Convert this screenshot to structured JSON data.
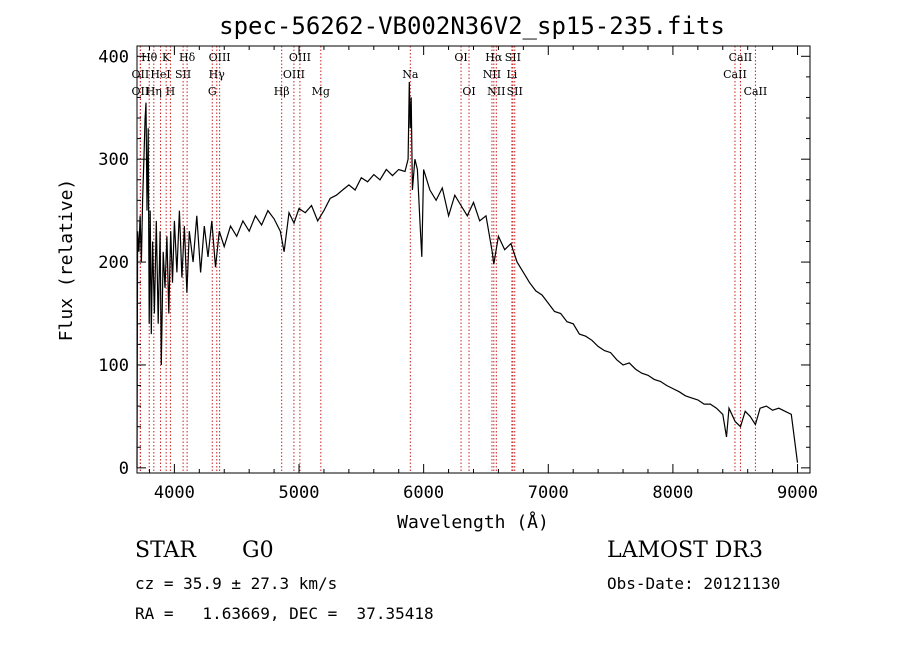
{
  "chart_data": {
    "type": "line",
    "title": "spec-56262-VB002N36V2_sp15-235.fits",
    "xlabel": "Wavelength (Å)",
    "ylabel": "Flux (relative)",
    "xlim": [
      3700,
      9100
    ],
    "ylim": [
      -5,
      410
    ],
    "x_ticks": [
      4000,
      5000,
      6000,
      7000,
      8000,
      9000
    ],
    "y_ticks": [
      0,
      100,
      200,
      300,
      400
    ],
    "series": [
      {
        "name": "flux",
        "points": [
          [
            3700,
            0
          ],
          [
            3705,
            230
          ],
          [
            3715,
            210
          ],
          [
            3725,
            245
          ],
          [
            3735,
            200
          ],
          [
            3745,
            260
          ],
          [
            3755,
            300
          ],
          [
            3765,
            340
          ],
          [
            3772,
            355
          ],
          [
            3780,
            250
          ],
          [
            3790,
            330
          ],
          [
            3798,
            140
          ],
          [
            3806,
            250
          ],
          [
            3815,
            130
          ],
          [
            3825,
            220
          ],
          [
            3840,
            150
          ],
          [
            3855,
            240
          ],
          [
            3870,
            140
          ],
          [
            3885,
            230
          ],
          [
            3895,
            100
          ],
          [
            3910,
            210
          ],
          [
            3925,
            175
          ],
          [
            3940,
            225
          ],
          [
            3955,
            150
          ],
          [
            3970,
            230
          ],
          [
            3985,
            180
          ],
          [
            4000,
            240
          ],
          [
            4020,
            190
          ],
          [
            4040,
            250
          ],
          [
            4060,
            185
          ],
          [
            4080,
            235
          ],
          [
            4100,
            170
          ],
          [
            4120,
            230
          ],
          [
            4150,
            200
          ],
          [
            4180,
            245
          ],
          [
            4210,
            190
          ],
          [
            4240,
            235
          ],
          [
            4270,
            205
          ],
          [
            4300,
            240
          ],
          [
            4330,
            195
          ],
          [
            4360,
            230
          ],
          [
            4400,
            215
          ],
          [
            4450,
            235
          ],
          [
            4500,
            225
          ],
          [
            4550,
            240
          ],
          [
            4600,
            230
          ],
          [
            4650,
            245
          ],
          [
            4700,
            236
          ],
          [
            4750,
            250
          ],
          [
            4800,
            242
          ],
          [
            4850,
            230
          ],
          [
            4880,
            210
          ],
          [
            4920,
            248
          ],
          [
            4960,
            238
          ],
          [
            5000,
            252
          ],
          [
            5050,
            248
          ],
          [
            5100,
            255
          ],
          [
            5150,
            240
          ],
          [
            5200,
            250
          ],
          [
            5250,
            262
          ],
          [
            5300,
            265
          ],
          [
            5350,
            270
          ],
          [
            5400,
            275
          ],
          [
            5450,
            270
          ],
          [
            5500,
            282
          ],
          [
            5550,
            278
          ],
          [
            5600,
            285
          ],
          [
            5650,
            280
          ],
          [
            5700,
            290
          ],
          [
            5750,
            284
          ],
          [
            5800,
            290
          ],
          [
            5850,
            288
          ],
          [
            5875,
            300
          ],
          [
            5885,
            375
          ],
          [
            5892,
            330
          ],
          [
            5900,
            360
          ],
          [
            5910,
            270
          ],
          [
            5930,
            300
          ],
          [
            5950,
            290
          ],
          [
            5970,
            240
          ],
          [
            5985,
            205
          ],
          [
            6000,
            290
          ],
          [
            6050,
            270
          ],
          [
            6100,
            260
          ],
          [
            6150,
            272
          ],
          [
            6200,
            245
          ],
          [
            6250,
            265
          ],
          [
            6300,
            255
          ],
          [
            6350,
            245
          ],
          [
            6400,
            258
          ],
          [
            6450,
            240
          ],
          [
            6500,
            245
          ],
          [
            6550,
            210
          ],
          [
            6563,
            198
          ],
          [
            6600,
            225
          ],
          [
            6650,
            212
          ],
          [
            6700,
            218
          ],
          [
            6750,
            200
          ],
          [
            6800,
            190
          ],
          [
            6850,
            180
          ],
          [
            6900,
            172
          ],
          [
            6950,
            168
          ],
          [
            7000,
            160
          ],
          [
            7050,
            152
          ],
          [
            7100,
            150
          ],
          [
            7150,
            142
          ],
          [
            7200,
            140
          ],
          [
            7250,
            130
          ],
          [
            7300,
            128
          ],
          [
            7350,
            124
          ],
          [
            7400,
            118
          ],
          [
            7450,
            114
          ],
          [
            7500,
            112
          ],
          [
            7550,
            105
          ],
          [
            7600,
            100
          ],
          [
            7650,
            102
          ],
          [
            7700,
            96
          ],
          [
            7750,
            92
          ],
          [
            7800,
            90
          ],
          [
            7850,
            86
          ],
          [
            7900,
            84
          ],
          [
            7950,
            80
          ],
          [
            8000,
            77
          ],
          [
            8050,
            74
          ],
          [
            8100,
            70
          ],
          [
            8150,
            68
          ],
          [
            8200,
            66
          ],
          [
            8250,
            62
          ],
          [
            8300,
            62
          ],
          [
            8350,
            58
          ],
          [
            8400,
            52
          ],
          [
            8430,
            30
          ],
          [
            8450,
            58
          ],
          [
            8500,
            45
          ],
          [
            8542,
            40
          ],
          [
            8580,
            55
          ],
          [
            8620,
            50
          ],
          [
            8662,
            42
          ],
          [
            8700,
            58
          ],
          [
            8750,
            60
          ],
          [
            8800,
            56
          ],
          [
            8850,
            58
          ],
          [
            8900,
            55
          ],
          [
            8950,
            52
          ],
          [
            9000,
            5
          ]
        ]
      }
    ],
    "spectral_lines": [
      {
        "label": "Hθ",
        "x": 3798,
        "row": 1
      },
      {
        "label": "OII",
        "x": 3727,
        "row": 2
      },
      {
        "label": "OII",
        "x": 3727,
        "row": 3
      },
      {
        "label": "Hη",
        "x": 3835,
        "row": 3
      },
      {
        "label": "K",
        "x": 3934,
        "row": 1
      },
      {
        "label": "HeI",
        "x": 3889,
        "row": 2
      },
      {
        "label": "SII",
        "x": 4070,
        "row": 2
      },
      {
        "label": "H",
        "x": 3968,
        "row": 3
      },
      {
        "label": "Hδ",
        "x": 4102,
        "row": 1
      },
      {
        "label": "OIII",
        "x": 4363,
        "row": 1
      },
      {
        "label": "Hγ",
        "x": 4340,
        "row": 2
      },
      {
        "label": "G",
        "x": 4304,
        "row": 3
      },
      {
        "label": "Hβ",
        "x": 4861,
        "row": 3
      },
      {
        "label": "OIII",
        "x": 5007,
        "row": 1
      },
      {
        "label": "OIII",
        "x": 4959,
        "row": 2
      },
      {
        "label": "Mg",
        "x": 5175,
        "row": 3
      },
      {
        "label": "Na",
        "x": 5893,
        "row": 2
      },
      {
        "label": "OI",
        "x": 6300,
        "row": 1
      },
      {
        "label": "OI",
        "x": 6364,
        "row": 3
      },
      {
        "label": "Hα",
        "x": 6563,
        "row": 1
      },
      {
        "label": "SII",
        "x": 6716,
        "row": 1
      },
      {
        "label": "NII",
        "x": 6548,
        "row": 2
      },
      {
        "label": "Li",
        "x": 6708,
        "row": 2
      },
      {
        "label": "NII",
        "x": 6583,
        "row": 3
      },
      {
        "label": "SII",
        "x": 6731,
        "row": 3
      },
      {
        "label": "CaII",
        "x": 8542,
        "row": 1
      },
      {
        "label": "CaII",
        "x": 8498,
        "row": 2
      },
      {
        "label": "CaII",
        "x": 8662,
        "row": 3
      }
    ],
    "line_color": "#cc2222",
    "series_color": "#000000"
  },
  "info": {
    "classification": "STAR",
    "subclass": "G0",
    "survey": "LAMOST DR3",
    "redshift": "cz = 35.9 ± 27.3 km/s",
    "obs_date": "Obs-Date: 20121130",
    "coords": "RA =   1.63669, DEC =  37.35418"
  }
}
